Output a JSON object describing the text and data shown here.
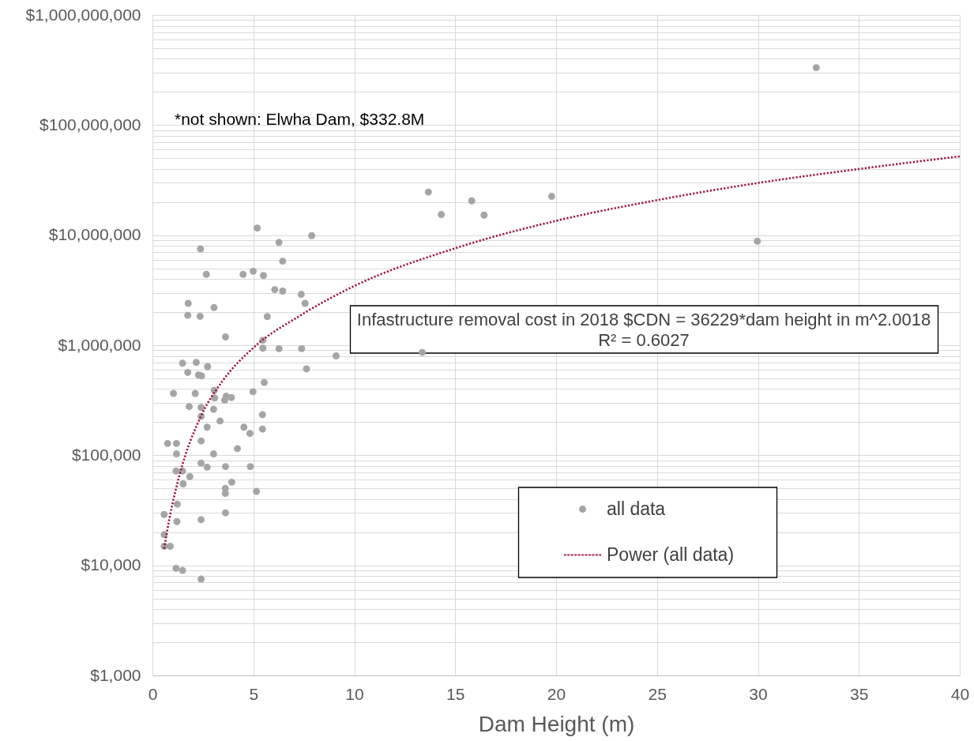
{
  "chart_data": {
    "type": "scatter",
    "xlabel": "Dam Height (m)",
    "annotations": [
      "*not shown: Elwha Dam, $332.8M",
      "Infastructure removal cost in 2018 $CDN = 36229*dam height in m^2.0018",
      "R² = 0.6027"
    ],
    "xlim": [
      0,
      40
    ],
    "ylim": [
      1000,
      1000000000
    ],
    "log": "y",
    "grid": true,
    "legend": "bottom",
    "xticks": [
      0,
      5,
      10,
      15,
      20,
      25,
      30,
      35,
      40
    ],
    "yticks": [
      {
        "value": 1000,
        "label": "$1,000"
      },
      {
        "value": 2000,
        "label": null
      },
      {
        "value": 3000,
        "label": null
      },
      {
        "value": 4000,
        "label": null
      },
      {
        "value": 5000,
        "label": null
      },
      {
        "value": 6000,
        "label": null
      },
      {
        "value": 7000,
        "label": null
      },
      {
        "value": 8000,
        "label": null
      },
      {
        "value": 9000,
        "label": null
      },
      {
        "value": 10000,
        "label": "$10,000"
      },
      {
        "value": 20000,
        "label": null
      },
      {
        "value": 30000,
        "label": null
      },
      {
        "value": 40000,
        "label": null
      },
      {
        "value": 50000,
        "label": null
      },
      {
        "value": 60000,
        "label": null
      },
      {
        "value": 70000,
        "label": null
      },
      {
        "value": 80000,
        "label": null
      },
      {
        "value": 90000,
        "label": null
      },
      {
        "value": 100000,
        "label": "$100,000"
      },
      {
        "value": 200000,
        "label": null
      },
      {
        "value": 300000,
        "label": null
      },
      {
        "value": 400000,
        "label": null
      },
      {
        "value": 500000,
        "label": null
      },
      {
        "value": 600000,
        "label": null
      },
      {
        "value": 700000,
        "label": null
      },
      {
        "value": 800000,
        "label": null
      },
      {
        "value": 900000,
        "label": null
      },
      {
        "value": 1000000,
        "label": "$1,000,000"
      },
      {
        "value": 2000000,
        "label": null
      },
      {
        "value": 3000000,
        "label": null
      },
      {
        "value": 4000000,
        "label": null
      },
      {
        "value": 5000000,
        "label": null
      },
      {
        "value": 6000000,
        "label": null
      },
      {
        "value": 7000000,
        "label": null
      },
      {
        "value": 8000000,
        "label": null
      },
      {
        "value": 9000000,
        "label": null
      },
      {
        "value": 10000000,
        "label": "$10,000,000"
      },
      {
        "value": 20000000,
        "label": null
      },
      {
        "value": 30000000,
        "label": null
      },
      {
        "value": 40000000,
        "label": null
      },
      {
        "value": 50000000,
        "label": null
      },
      {
        "value": 60000000,
        "label": null
      },
      {
        "value": 70000000,
        "label": null
      },
      {
        "value": 80000000,
        "label": null
      },
      {
        "value": 90000000,
        "label": null
      },
      {
        "value": 100000000,
        "label": "$100,000,000"
      },
      {
        "value": 200000000,
        "label": null
      },
      {
        "value": 300000000,
        "label": null
      },
      {
        "value": 400000000,
        "label": null
      },
      {
        "value": 500000000,
        "label": null
      },
      {
        "value": 600000000,
        "label": null
      },
      {
        "value": 700000000,
        "label": null
      },
      {
        "value": 800000000,
        "label": null
      },
      {
        "value": 900000000,
        "label": null
      },
      {
        "value": 1000000000,
        "label": "$1,000,000,000"
      }
    ],
    "series": [
      {
        "name": "all data",
        "marker": "circle",
        "color": "#a5a5a5",
        "x": [
          5.19,
          7.89,
          6.27,
          2.38,
          6.45,
          2.67,
          4.49,
          4.99,
          5.5,
          6.06,
          6.45,
          7.37,
          7.56,
          1.77,
          3.05,
          1.75,
          2.36,
          5.69,
          3.62,
          5.47,
          5.47,
          6.27,
          7.39,
          13.67,
          14.31,
          15.82,
          16.43,
          19.78,
          9.1,
          7.63,
          13.37,
          32.89,
          29.97,
          1.49,
          2.17,
          2.73,
          1.75,
          2.28,
          2.43,
          5.54,
          1.04,
          2.12,
          3.06,
          4.98,
          3.65,
          3.91,
          3.58,
          3.08,
          1.82,
          2.41,
          3.03,
          5.45,
          3.35,
          2.41,
          2.71,
          4.53,
          4.83,
          5.45,
          0.75,
          1.19,
          2.41,
          1.19,
          3.03,
          4.21,
          2.41,
          2.71,
          3.62,
          4.85,
          1.17,
          1.49,
          1.85,
          1.52,
          3.93,
          3.61,
          3.61,
          5.15,
          1.23,
          0.58,
          1.21,
          2.41,
          3.62,
          0.58,
          0.58,
          0.88,
          1.17,
          1.49,
          2.41
        ],
        "values": [
          11600000,
          9900000,
          8600000,
          7500000,
          5800000,
          4400000,
          4400000,
          4700000,
          4300000,
          3200000,
          3100000,
          2900000,
          2400000,
          2400000,
          2200000,
          1870000,
          1830000,
          1820000,
          1190000,
          1110000,
          940000,
          930000,
          930000,
          24600000,
          15400000,
          20500000,
          15200000,
          22500000,
          800000,
          610000,
          860000,
          332600000,
          8800000,
          686000,
          698000,
          640000,
          566000,
          536000,
          527000,
          459000,
          365000,
          365000,
          389000,
          378000,
          344000,
          335000,
          317000,
          332000,
          277000,
          272000,
          262000,
          234000,
          205000,
          226000,
          180000,
          180000,
          158000,
          173000,
          128000,
          128000,
          135000,
          103000,
          103000,
          115000,
          85000,
          78000,
          79000,
          79000,
          72000,
          72000,
          64000,
          55000,
          57000,
          50000,
          45000,
          47000,
          36000,
          29000,
          25000,
          26000,
          30000,
          19000,
          14900,
          14900,
          9400,
          9000,
          7500
        ]
      },
      {
        "name": "Power (all data)",
        "type": "line",
        "line_style": "dotted",
        "color": "#a3123a",
        "x": [
          0.58,
          0.84,
          1.36,
          2.41,
          3.45,
          5.02,
          7.3,
          9.91,
          15,
          20,
          25,
          30,
          35,
          40
        ],
        "values": [
          14200,
          26600,
          68000,
          228000,
          467000,
          955000,
          1850000,
          3390000,
          7600000,
          13500000,
          20800000,
          29800000,
          39900000,
          52000000
        ]
      }
    ]
  }
}
